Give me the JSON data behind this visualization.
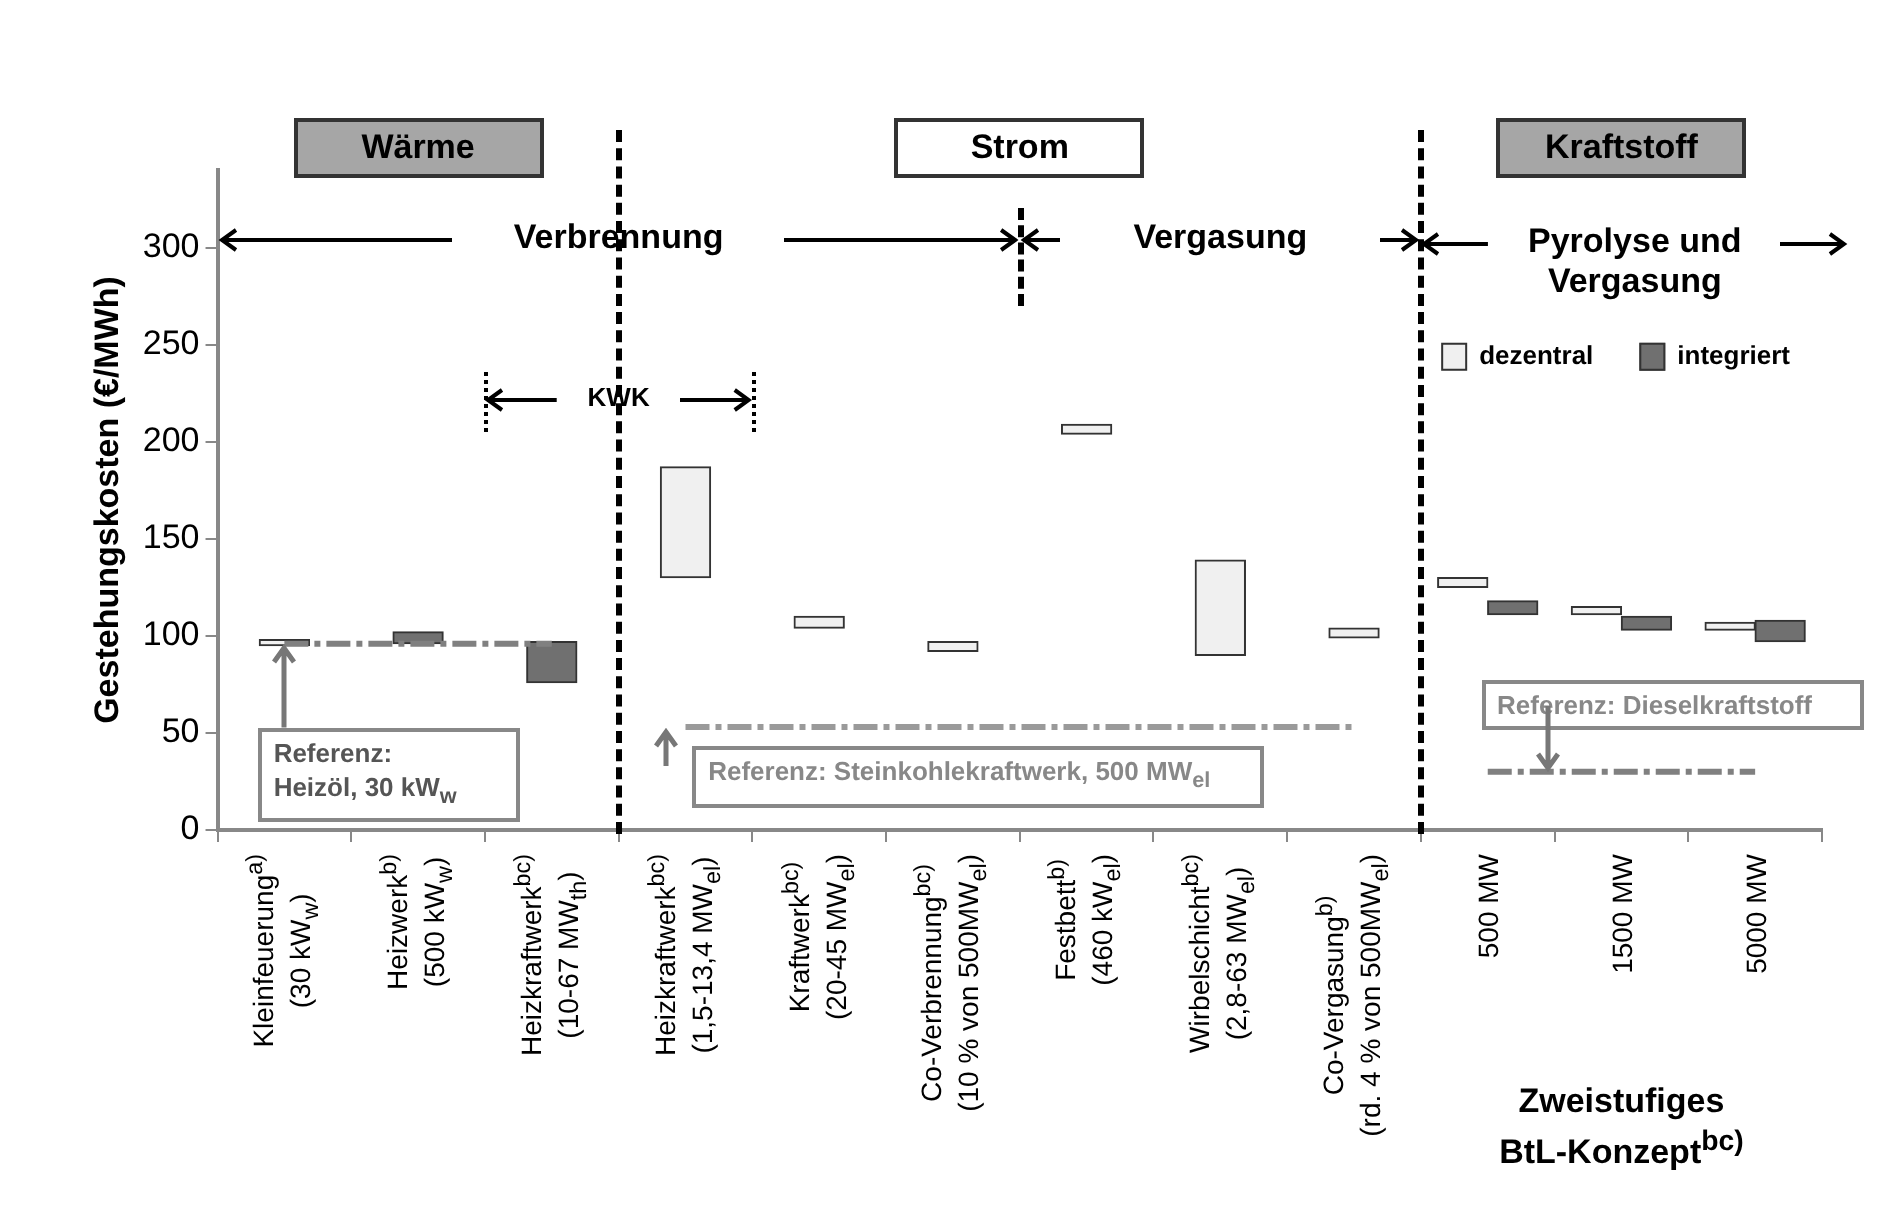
{
  "chart_data": {
    "type": "bar",
    "ylabel": "Gestehungskosten (€/MWh)",
    "categories": [
      "Kleinfeuerung$^{a)}$\n(30 kW$_{w}$)",
      "Heizwerk$^{b)}$\n(500 kW$_{w}$)",
      "Heizkraftwerk$^{bc)}$\n(10-67 MW$_{th}$)",
      "Heizkraftwerk$^{bc)}$\n(1,5-13,4 MW$_{el}$)",
      "Kraftwerk$^{bc)}$\n(20-45 MW$_{el}$)",
      "Co-Verbrennung$^{bc)}$\n(10 % von 500MW$_{el}$)",
      "Festbett$^{b)}$\n(460 kW$_{el}$)",
      "Wirbelschicht$^{bc)}$\n(2,8-63 MW$_{el}$)",
      "Co-Vergasung$^{b)}$\n(rd. 4 % von 500MW$_{el}$)",
      "500 MW",
      "1500 MW",
      "5000 MW"
    ],
    "series": [
      {
        "name": "dezentral",
        "color": "#f0f0f0",
        "values": [
          3,
          null,
          null,
          57,
          6,
          5,
          5,
          49,
          5,
          5,
          4,
          4
        ],
        "base": [
          95,
          null,
          null,
          130,
          104,
          92,
          204,
          90,
          99,
          125,
          111,
          103
        ]
      },
      {
        "name": "integriert",
        "color": "#707070",
        "values": [
          null,
          6,
          21,
          null,
          null,
          null,
          null,
          null,
          null,
          7,
          7,
          11
        ],
        "base": [
          null,
          96,
          76,
          null,
          null,
          null,
          null,
          null,
          null,
          111,
          103,
          97
        ]
      },
      {
        "type": "line",
        "color": "#808080",
        "line_style": "dashed",
        "marker": "none",
        "values": [
          96,
          96,
          96,
          null,
          null,
          null,
          null,
          null,
          null,
          null,
          null,
          null
        ]
      },
      {
        "type": "line",
        "color": "#9a9a9a",
        "line_style": "dashed",
        "marker": "none",
        "values": [
          null,
          null,
          null,
          53,
          53,
          53,
          53,
          53,
          53,
          null,
          null,
          null
        ]
      },
      {
        "type": "line",
        "color": "#808080",
        "line_style": "dashed",
        "marker": "none",
        "values": [
          null,
          null,
          null,
          null,
          null,
          null,
          null,
          null,
          null,
          30,
          30,
          30
        ]
      }
    ],
    "ylim": [
      0,
      340
    ],
    "yticks": [
      0,
      50,
      100,
      150,
      200,
      250,
      300
    ],
    "grid": false,
    "legend": "top right",
    "annotations": [
      "Wärme",
      "Strom",
      "Kraftstoff",
      "Verbrennung",
      "Vergasung",
      "Pyrolyse und\nVergasung",
      "KWK",
      {
        "text": "Referenz:\nHeizöl, 30 kW$_{w}$",
        "x": "Kleinfeuerung$^{a)}$\n(30 kW$_{w}$)",
        "y": 96
      },
      {
        "text": "Referenz:  Steinkohlekraftwerk, 500 MW$_{el}$",
        "y": 53
      },
      {
        "text": "Referenz:  Dieselkraftstoff",
        "y": 30
      },
      "Zweistufiges\nBtL-Konzept$^{bc)}$"
    ]
  }
}
